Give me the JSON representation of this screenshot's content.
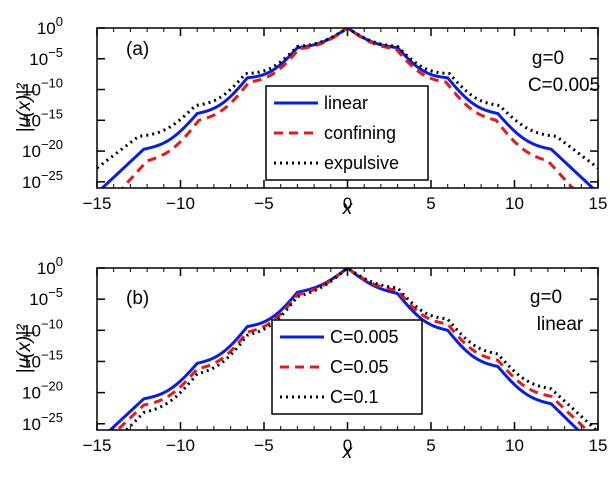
{
  "chart_data": [
    {
      "type": "line",
      "panel_label": "(a)",
      "xlabel": "x",
      "ylabel": "|u(x)|²",
      "xlim": [
        -15,
        15
      ],
      "ylim_log10": [
        -26,
        0
      ],
      "yscale": "log",
      "x_ticks": [
        "−15",
        "−10",
        "−5",
        "0",
        "5",
        "10",
        "15"
      ],
      "y_ticks": [
        {
          "exp": "0",
          "value": 1
        },
        {
          "exp": "−5",
          "value": 1e-05
        },
        {
          "exp": "−10",
          "value": 1e-10
        },
        {
          "exp": "−15",
          "value": 1e-15
        },
        {
          "exp": "−20",
          "value": 1e-20
        },
        {
          "exp": "−25",
          "value": 1e-25
        }
      ],
      "annotations": {
        "line1": "g=0",
        "line2": "C=0.005"
      },
      "legend_position": "center",
      "series": [
        {
          "name": "linear",
          "color": "#0a1edc",
          "dash": "solid",
          "log10_peaks": [
            [
              -12.2,
              -19.7
            ],
            [
              -9.0,
              -13.9
            ],
            [
              -6.0,
              -8.1
            ],
            [
              -3.0,
              -3.2
            ],
            [
              0.0,
              0.0
            ],
            [
              3.0,
              -3.2
            ],
            [
              6.0,
              -8.1
            ],
            [
              9.0,
              -13.9
            ],
            [
              12.2,
              -19.7
            ]
          ]
        },
        {
          "name": "confining",
          "color": "#e41a1c",
          "dash": "dashed",
          "log10_peaks": [
            [
              -12.0,
              -21.6
            ],
            [
              -8.9,
              -15.0
            ],
            [
              -5.9,
              -8.8
            ],
            [
              -2.9,
              -3.4
            ],
            [
              0.0,
              0.0
            ],
            [
              2.9,
              -3.4
            ],
            [
              5.9,
              -8.8
            ],
            [
              8.9,
              -15.0
            ],
            [
              12.0,
              -21.6
            ]
          ]
        },
        {
          "name": "expulsive",
          "color": "#000000",
          "dash": "dotted",
          "log10_peaks": [
            [
              -12.5,
              -17.6
            ],
            [
              -9.1,
              -12.6
            ],
            [
              -6.1,
              -7.4
            ],
            [
              -3.0,
              -3.0
            ],
            [
              0.0,
              0.0
            ],
            [
              3.0,
              -3.0
            ],
            [
              6.1,
              -7.4
            ],
            [
              9.1,
              -12.6
            ],
            [
              12.5,
              -17.6
            ]
          ]
        }
      ]
    },
    {
      "type": "line",
      "panel_label": "(b)",
      "xlabel": "x",
      "ylabel": "|u(x)|²",
      "xlim": [
        -15,
        15
      ],
      "ylim_log10": [
        -26,
        0
      ],
      "yscale": "log",
      "x_ticks": [
        "−15",
        "−10",
        "−5",
        "0",
        "5",
        "10",
        "15"
      ],
      "y_ticks": [
        {
          "exp": "0",
          "value": 1
        },
        {
          "exp": "−5",
          "value": 1e-05
        },
        {
          "exp": "−10",
          "value": 1e-10
        },
        {
          "exp": "−15",
          "value": 1e-15
        },
        {
          "exp": "−20",
          "value": 1e-20
        },
        {
          "exp": "−25",
          "value": 1e-25
        }
      ],
      "annotations": {
        "line1": "g=0",
        "line2": "linear"
      },
      "legend_position": "center",
      "series": [
        {
          "name": "C=0.005",
          "color": "#0a1edc",
          "dash": "solid",
          "log10_peaks": [
            [
              -12.2,
              -21.0
            ],
            [
              -9.0,
              -15.3
            ],
            [
              -6.0,
              -9.4
            ],
            [
              -3.0,
              -3.9
            ],
            [
              0.0,
              0.0
            ],
            [
              3.0,
              -4.1
            ],
            [
              6.0,
              -10.0
            ],
            [
              9.0,
              -15.8
            ],
            [
              12.2,
              -21.8
            ]
          ]
        },
        {
          "name": "C=0.05",
          "color": "#e41a1c",
          "dash": "dashed",
          "log10_peaks": [
            [
              -12.2,
              -22.0
            ],
            [
              -9.0,
              -16.2
            ],
            [
              -6.0,
              -10.3
            ],
            [
              -3.0,
              -4.3
            ],
            [
              0.0,
              0.0
            ],
            [
              3.0,
              -3.6
            ],
            [
              6.0,
              -9.0
            ],
            [
              9.0,
              -14.8
            ],
            [
              12.2,
              -20.6
            ]
          ]
        },
        {
          "name": "C=0.1",
          "color": "#000000",
          "dash": "dotted",
          "log10_peaks": [
            [
              -12.2,
              -23.2
            ],
            [
              -9.0,
              -17.0
            ],
            [
              -6.0,
              -10.8
            ],
            [
              -3.0,
              -4.6
            ],
            [
              0.0,
              0.0
            ],
            [
              3.0,
              -3.2
            ],
            [
              6.0,
              -8.2
            ],
            [
              9.0,
              -13.8
            ],
            [
              12.2,
              -19.4
            ]
          ]
        }
      ]
    }
  ]
}
